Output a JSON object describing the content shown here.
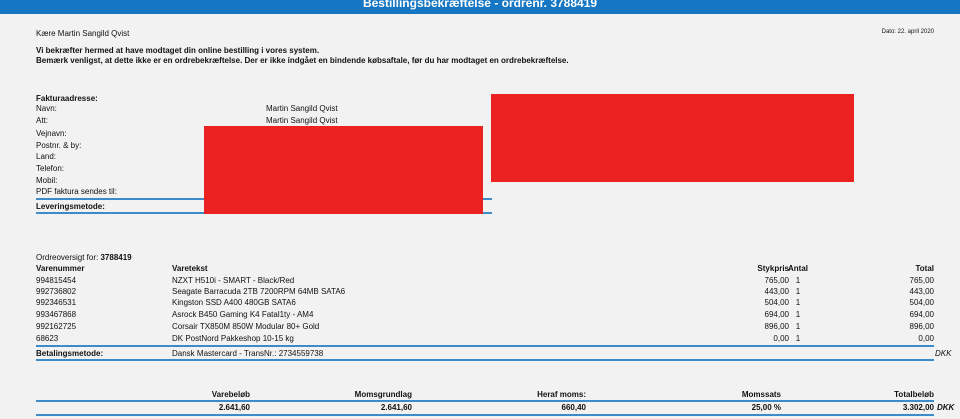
{
  "header": {
    "title": "Bestillingsbekræftelse - ordrenr. 3788419"
  },
  "greeting": "Kære Martin Sangild Qvist",
  "date": "Dato: 22. april 2020",
  "intro": {
    "line1": "Vi bekræfter hermed at have modtaget din online bestilling i vores system.",
    "line2": "Bemærk venligst, at dette ikke er en ordrebekræftelse. Der er ikke indgået en bindende købsaftale, før du har modtaget en ordrebekræftelse."
  },
  "billing": {
    "heading": "Fakturaadresse:",
    "fields": [
      {
        "label": "Navn:",
        "value": "Martin Sangild Qvist"
      },
      {
        "label": "Att:",
        "value": "Martin Sangild Qvist"
      },
      {
        "label": "Vejnavn:",
        "value": ""
      },
      {
        "label": "Postnr. & by:",
        "value": ""
      },
      {
        "label": "Land:",
        "value": ""
      },
      {
        "label": "Telefon:",
        "value": ""
      },
      {
        "label": "Mobil:",
        "value": ""
      },
      {
        "label": "PDF faktura sendes til:",
        "value": ""
      }
    ],
    "delivery_label": "Leveringsmetode:"
  },
  "order": {
    "overview_label": "Ordreoversigt for:",
    "order_number": "3788419",
    "columns": {
      "item_no": "Varenummer",
      "description": "Varetekst",
      "unit_price": "Stykpris",
      "qty": "Antal",
      "total": "Total"
    },
    "items": [
      {
        "item_no": "994815454",
        "description": "NZXT H510i - SMART - Black/Red",
        "unit_price": "765,00",
        "qty": "1",
        "total": "765,00"
      },
      {
        "item_no": "992736802",
        "description": "Seagate Barracuda 2TB 7200RPM 64MB SATA6",
        "unit_price": "443,00",
        "qty": "1",
        "total": "443,00"
      },
      {
        "item_no": "992346531",
        "description": "Kingston SSD A400 480GB SATA6",
        "unit_price": "504,00",
        "qty": "1",
        "total": "504,00"
      },
      {
        "item_no": "993467868",
        "description": "Asrock B450 Gaming K4 Fatal1ty - AM4",
        "unit_price": "694,00",
        "qty": "1",
        "total": "694,00"
      },
      {
        "item_no": "992162725",
        "description": "Corsair TX850M 850W Modular 80+ Gold",
        "unit_price": "896,00",
        "qty": "1",
        "total": "896,00"
      },
      {
        "item_no": "68623",
        "description": "DK PostNord Pakkeshop 10-15 kg",
        "unit_price": "0,00",
        "qty": "1",
        "total": "0,00"
      }
    ],
    "payment_label": "Betalingsmetode:",
    "payment_value": "Dansk Mastercard - TransNr.: 2734559738",
    "currency": "DKK"
  },
  "totals": {
    "labels": {
      "item_amount": "Varebeløb",
      "vat_base": "Momsgrundlag",
      "vat": "Heraf moms:",
      "vat_rate": "Momssats",
      "total": "Totalbeløb"
    },
    "values": {
      "item_amount": "2.641,60",
      "vat_base": "2.641,60",
      "vat": "660,40",
      "vat_rate": "25,00 %",
      "total": "3.302,00",
      "currency": "DKK"
    }
  },
  "colors": {
    "header_bg": "#1577c4",
    "rule": "#3d8cc9",
    "redaction": "#ea2222",
    "page_bg": "#f2f2f2"
  }
}
